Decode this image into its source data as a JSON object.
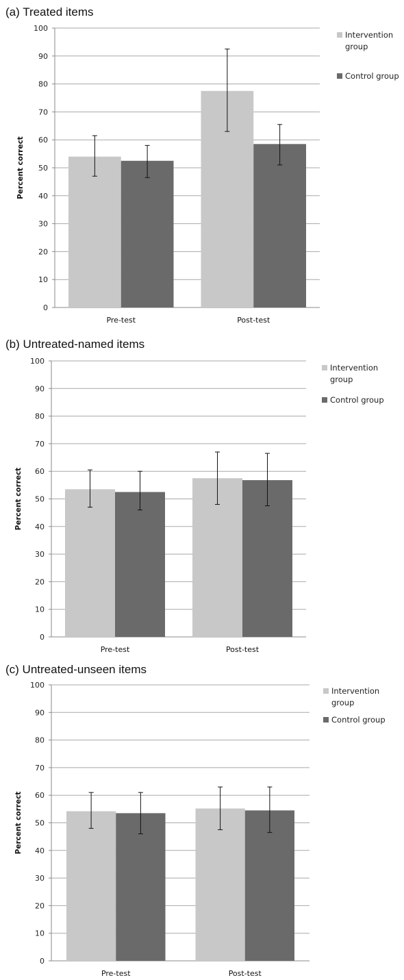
{
  "chart_data": [
    {
      "type": "bar",
      "panel_title": "(a)  Treated items",
      "categories": [
        "Pre-test",
        "Post-test"
      ],
      "series": [
        {
          "name": "Intervention group",
          "values": [
            54,
            77.5
          ],
          "errors": [
            [
              47,
              61.5
            ],
            [
              63,
              92.5
            ]
          ]
        },
        {
          "name": "Control group",
          "values": [
            52.5,
            58.5
          ],
          "errors": [
            [
              46.5,
              58
            ],
            [
              51,
              65.5
            ]
          ]
        }
      ],
      "ylabel": "Percent correct",
      "ylim": [
        0,
        100
      ],
      "yticks": [
        0,
        10,
        20,
        30,
        40,
        50,
        60,
        70,
        80,
        90,
        100
      ],
      "grid": true,
      "legend_position": "right",
      "legend_lines": [
        [
          "Intervention",
          "group"
        ],
        [
          "Control group"
        ]
      ],
      "colors": [
        "#c8c8c8",
        "#6a6a6a"
      ]
    },
    {
      "type": "bar",
      "panel_title": "(b)  Untreated-named items",
      "categories": [
        "Pre-test",
        "Post-test"
      ],
      "series": [
        {
          "name": "Intervention group",
          "values": [
            53.5,
            57.5
          ],
          "errors": [
            [
              47,
              60.5
            ],
            [
              48,
              67
            ]
          ]
        },
        {
          "name": "Control group",
          "values": [
            52.5,
            56.8
          ],
          "errors": [
            [
              46,
              60
            ],
            [
              47.5,
              66.5
            ]
          ]
        }
      ],
      "ylabel": "Percent correct",
      "ylim": [
        0,
        100
      ],
      "yticks": [
        0,
        10,
        20,
        30,
        40,
        50,
        60,
        70,
        80,
        90,
        100
      ],
      "grid": true,
      "legend_position": "right",
      "legend_lines": [
        [
          "Intervention",
          "group"
        ],
        [
          "Control group"
        ]
      ],
      "colors": [
        "#c8c8c8",
        "#6a6a6a"
      ]
    },
    {
      "type": "bar",
      "panel_title": "(c)  Untreated-unseen items",
      "categories": [
        "Pre-test",
        "Post-test"
      ],
      "series": [
        {
          "name": "Intervention group",
          "values": [
            54.2,
            55.2
          ],
          "errors": [
            [
              48,
              61
            ],
            [
              47.5,
              63
            ]
          ]
        },
        {
          "name": "Control group",
          "values": [
            53.5,
            54.5
          ],
          "errors": [
            [
              46,
              61
            ],
            [
              46.5,
              63
            ]
          ]
        }
      ],
      "ylabel": "Percent correct",
      "ylim": [
        0,
        100
      ],
      "yticks": [
        0,
        10,
        20,
        30,
        40,
        50,
        60,
        70,
        80,
        90,
        100
      ],
      "grid": true,
      "legend_position": "right",
      "legend_lines": [
        [
          "Intervention",
          "group"
        ],
        [
          "Control group"
        ]
      ],
      "colors": [
        "#c8c8c8",
        "#6a6a6a"
      ]
    }
  ]
}
